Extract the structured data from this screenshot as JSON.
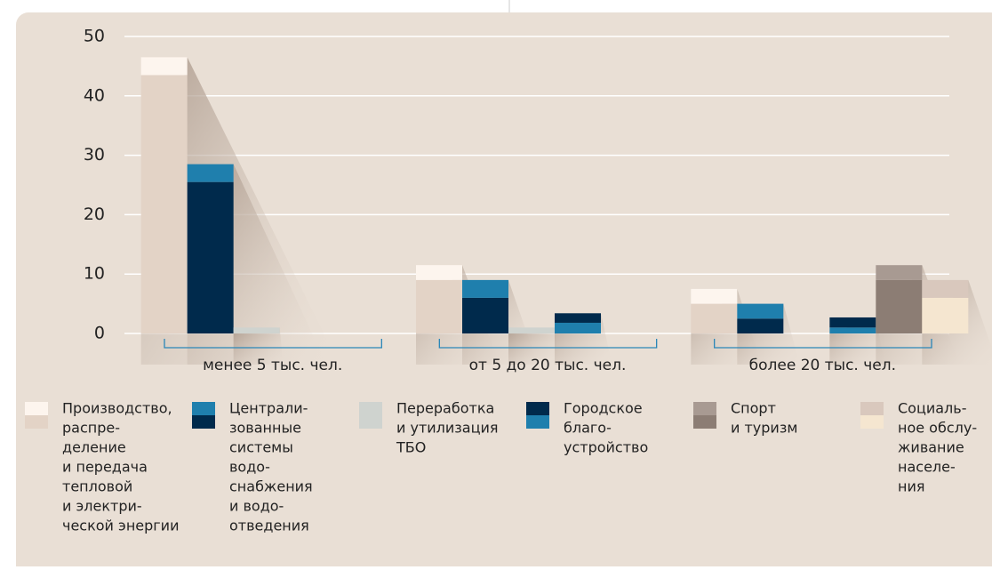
{
  "chart_data": {
    "type": "stacked-bar",
    "categories": [
      "менее 5 тыс. чел.",
      "от 5 до 20 тыс. чел.",
      "более 20 тыс. чел."
    ],
    "ylim": [
      0,
      50
    ],
    "yticks": [
      0,
      10,
      20,
      30,
      40,
      50
    ],
    "grid": true,
    "series": [
      {
        "name": [
          "Производство,",
          "распре-",
          "деление",
          "и передача",
          "тепловой",
          "и электри-",
          "ческой энергии"
        ],
        "segments": [
          {
            "color": "#e3d3c6",
            "values": [
              43.5,
              9,
              5
            ]
          },
          {
            "color": "#fdf5ee",
            "values": [
              3,
              2.5,
              2.5
            ]
          }
        ]
      },
      {
        "name": [
          "Централи-",
          "зованные",
          "системы",
          "водо-",
          "снабжения",
          "и водо-",
          "отведения"
        ],
        "segments": [
          {
            "color": "#002a4c",
            "values": [
              25.5,
              6,
              2.5
            ]
          },
          {
            "color": "#1f7fad",
            "values": [
              3,
              3,
              2.5
            ]
          }
        ]
      },
      {
        "name": [
          "Переработка",
          "и утилизация",
          "ТБО"
        ],
        "segments": [
          {
            "color": "#cfd3cf",
            "values": [
              1,
              1,
              null
            ]
          }
        ]
      },
      {
        "name": [
          "Городское",
          "благо-",
          "устройство"
        ],
        "segments": [
          {
            "color": "#1f7fad",
            "values": [
              null,
              1.8,
              1
            ]
          },
          {
            "color": "#002a4c",
            "values": [
              null,
              1.6,
              1.7
            ]
          }
        ]
      },
      {
        "name": [
          "Спорт",
          "и туризм"
        ],
        "segments": [
          {
            "color": "#8c7d74",
            "values": [
              null,
              null,
              9
            ]
          },
          {
            "color": "#a89a92",
            "values": [
              null,
              null,
              2.5
            ]
          }
        ]
      },
      {
        "name": [
          "Социаль-",
          "ное обслу-",
          "живание",
          "населе-",
          "ния"
        ],
        "segments": [
          {
            "color": "#f5e6d0",
            "values": [
              null,
              null,
              6
            ]
          },
          {
            "color": "#d9c8bd",
            "values": [
              null,
              null,
              3
            ]
          }
        ]
      }
    ]
  }
}
